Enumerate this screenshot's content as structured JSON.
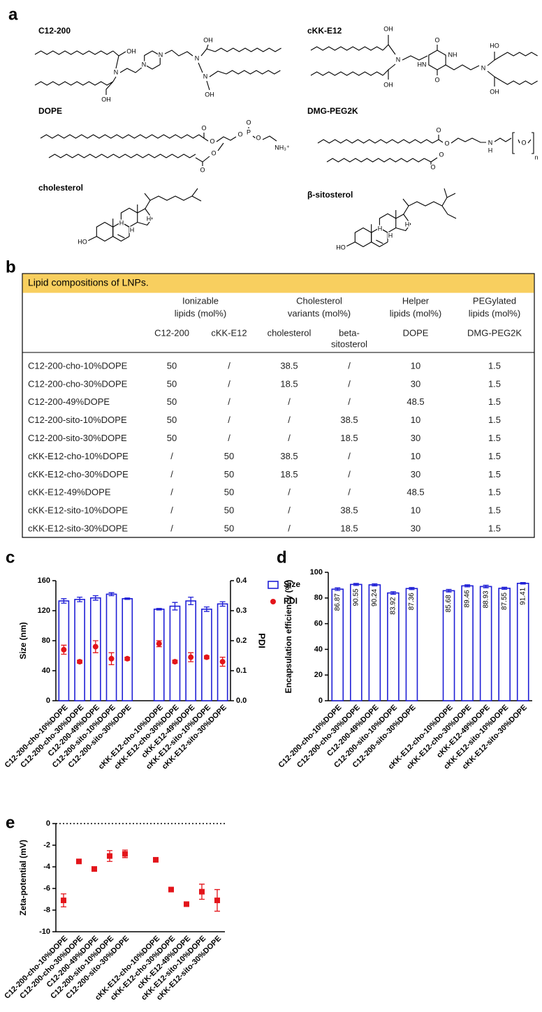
{
  "panel_labels": [
    "a",
    "b",
    "c",
    "d",
    "e"
  ],
  "structures": [
    {
      "name": "C12-200",
      "atoms": [
        "OH",
        "N",
        "OH",
        "N",
        "N",
        "N",
        "OH",
        "N",
        "OH"
      ]
    },
    {
      "name": "cKK-E12",
      "atoms": [
        "OH",
        "OH",
        "N",
        "O",
        "NH",
        "HN",
        "O",
        "N",
        "HO",
        "OH"
      ]
    },
    {
      "name": "DOPE",
      "atoms": [
        "O",
        "O",
        "O",
        "P",
        "O",
        "O",
        "NH₃⁺",
        "O",
        "O"
      ]
    },
    {
      "name": "DMG-PEG2K",
      "atoms": [
        "O",
        "O",
        "O",
        "O",
        "N",
        "H",
        "O",
        "n"
      ]
    },
    {
      "name": "cholesterol",
      "atoms": [
        "HO",
        "H",
        "H",
        "H"
      ]
    },
    {
      "name": "β-sitosterol",
      "atoms": [
        "HO",
        "H",
        "H",
        "H"
      ]
    }
  ],
  "table": {
    "title": "Lipid compositions of LNPs.",
    "groups": [
      {
        "lines": [
          "Ionizable",
          "lipids (mol%)"
        ]
      },
      {
        "lines": [
          "Cholesterol",
          "variants (mol%)"
        ]
      },
      {
        "lines": [
          "Helper",
          "lipids (mol%)"
        ]
      },
      {
        "lines": [
          "PEGylated",
          "lipids (mol%)"
        ]
      }
    ],
    "columns": [
      [
        "C12-200"
      ],
      [
        "cKK-E12"
      ],
      [
        "cholesterol"
      ],
      [
        "beta-",
        "sitosterol"
      ],
      [
        "DOPE"
      ],
      [
        "DMG-PEG2K"
      ]
    ],
    "rows": [
      [
        "C12-200-cho-10%DOPE",
        50,
        "/",
        38.5,
        "/",
        10,
        1.5
      ],
      [
        "C12-200-cho-30%DOPE",
        50,
        "/",
        18.5,
        "/",
        30,
        1.5
      ],
      [
        "C12-200-49%DOPE",
        50,
        "/",
        "/",
        "/",
        48.5,
        1.5
      ],
      [
        "C12-200-sito-10%DOPE",
        50,
        "/",
        "/",
        38.5,
        10,
        1.5
      ],
      [
        "C12-200-sito-30%DOPE",
        50,
        "/",
        "/",
        18.5,
        30,
        1.5
      ],
      [
        "cKK-E12-cho-10%DOPE",
        "/",
        50,
        38.5,
        "/",
        10,
        1.5
      ],
      [
        "cKK-E12-cho-30%DOPE",
        "/",
        50,
        18.5,
        "/",
        30,
        1.5
      ],
      [
        "cKK-E12-49%DOPE",
        "/",
        50,
        "/",
        "/",
        48.5,
        1.5
      ],
      [
        "cKK-E12-sito-10%DOPE",
        "/",
        50,
        "/",
        38.5,
        10,
        1.5
      ],
      [
        "cKK-E12-sito-30%DOPE",
        "/",
        50,
        "/",
        18.5,
        30,
        1.5
      ]
    ]
  },
  "chart_data": [
    {
      "type": "bar",
      "categories": [
        "C12-200-cho-10%DOPE",
        "C12-200-cho-30%DOPE",
        "C12-200-49%DOPE",
        "C12-200-sito-10%DOPE",
        "C12-200-sito-30%DOPE",
        null,
        "cKK-E12-cho-10%DOPE",
        "cKK-E12-cho-30%DOPE",
        "cKK-E12-49%DOPE",
        "cKK-E12-sito-10%DOPE",
        "cKK-E12-sito-30%DOPE"
      ],
      "ylabel": "Size (nm)",
      "y2label": "PDI",
      "ylim": [
        0,
        160
      ],
      "yticks": [
        0,
        40,
        80,
        120,
        160
      ],
      "y2lim": [
        0,
        0.4
      ],
      "y2ticks": [
        {
          "value": 0,
          "label": "0.0"
        },
        0.1,
        0.2,
        0.3,
        0.4
      ],
      "legend": "upper right",
      "series": [
        {
          "name": "Size",
          "type": "bar",
          "color": "#1f1fd6",
          "values": [
            133,
            135,
            137,
            142,
            136,
            null,
            122,
            126,
            133,
            122,
            129
          ],
          "errors": [
            3,
            3,
            3,
            2,
            1,
            null,
            1,
            5,
            5,
            3,
            3
          ]
        },
        {
          "name": "PDI",
          "type": "scatter",
          "marker": "circle",
          "axis": "y2",
          "color": "#e3151b",
          "values": [
            0.17,
            0.13,
            0.18,
            0.14,
            0.14,
            null,
            0.19,
            0.13,
            0.145,
            0.145,
            0.13
          ],
          "errors": [
            0.015,
            0.005,
            0.02,
            0.02,
            0.005,
            null,
            0.01,
            0.005,
            0.015,
            0.005,
            0.015
          ]
        }
      ]
    },
    {
      "type": "bar",
      "categories": [
        "C12-200-cho-10%DOPE",
        "C12-200-cho-30%DOPE",
        "C12-200-49%DOPE",
        "C12-200-sito-10%DOPE",
        "C12-200-sito-30%DOPE",
        null,
        "cKK-E12-cho-10%DOPE",
        "cKK-E12-cho-30%DOPE",
        "cKK-E12-49%DOPE",
        "cKK-E12-sito-10%DOPE",
        "cKK-E12-sito-30%DOPE"
      ],
      "ylabel": "Encapsulation efficiency (%)",
      "ylim": [
        0,
        100
      ],
      "yticks": [
        0,
        20,
        40,
        60,
        80,
        100
      ],
      "data_labels": true,
      "series": [
        {
          "type": "bar",
          "color": "#1f1fd6",
          "values": [
            86.87,
            90.55,
            90.24,
            83.92,
            87.36,
            null,
            85.68,
            89.46,
            88.93,
            87.55,
            91.41
          ],
          "errors": [
            1,
            0.8,
            0.8,
            1,
            0.8,
            null,
            1,
            0.8,
            1,
            0.8,
            0.6
          ]
        }
      ]
    },
    {
      "type": "scatter",
      "categories": [
        "C12-200-cho-10%DOPE",
        "C12-200-cho-30%DOPE",
        "C12-200-49%DOPE",
        "C12-200-sito-10%DOPE",
        "C12-200-sito-30%DOPE",
        null,
        "cKK-E12-cho-10%DOPE",
        "cKK-E12-cho-30%DOPE",
        "cKK-E12-49%DOPE",
        "cKK-E12-sito-10%DOPE",
        "cKK-E12-sito-30%DOPE"
      ],
      "ylabel": "Zeta-potential (mV)",
      "ylim": [
        -10,
        0
      ],
      "yticks": [
        0,
        -2,
        -4,
        -6,
        -8,
        -10
      ],
      "refline": 0,
      "series": [
        {
          "marker": "square",
          "color": "#e3151b",
          "values": [
            -7.1,
            -3.5,
            -4.2,
            -3.0,
            -2.8,
            null,
            -3.35,
            -6.1,
            -7.45,
            -6.3,
            -7.1
          ],
          "errors": [
            0.6,
            0.1,
            0.15,
            0.5,
            0.35,
            null,
            0.1,
            0.08,
            0.1,
            0.7,
            1.0
          ]
        }
      ]
    }
  ]
}
